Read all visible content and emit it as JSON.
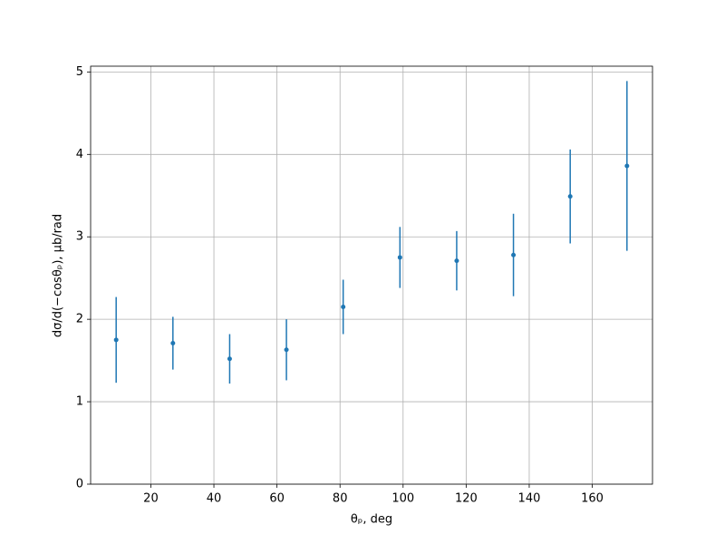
{
  "chart_data": {
    "type": "errorbar",
    "xlabel": "θₚ, deg",
    "ylabel": "dσ/d(−cosθₚ), μb/rad",
    "x": [
      9,
      27,
      45,
      63,
      81,
      99,
      117,
      135,
      153,
      171
    ],
    "series": [
      {
        "color": "#1f77b4",
        "values": [
          1.75,
          1.71,
          1.52,
          1.63,
          2.15,
          2.75,
          2.71,
          2.78,
          3.49,
          3.86
        ],
        "errors": [
          0.52,
          0.32,
          0.3,
          0.37,
          0.33,
          0.37,
          0.36,
          0.5,
          0.57,
          1.03
        ]
      }
    ],
    "xlim": [
      0.9,
      179.1
    ],
    "ylim": [
      0,
      5.07
    ],
    "xticks": [
      20,
      40,
      60,
      80,
      100,
      120,
      140,
      160
    ],
    "yticks": [
      0,
      1,
      2,
      3,
      4,
      5
    ],
    "grid": true
  }
}
